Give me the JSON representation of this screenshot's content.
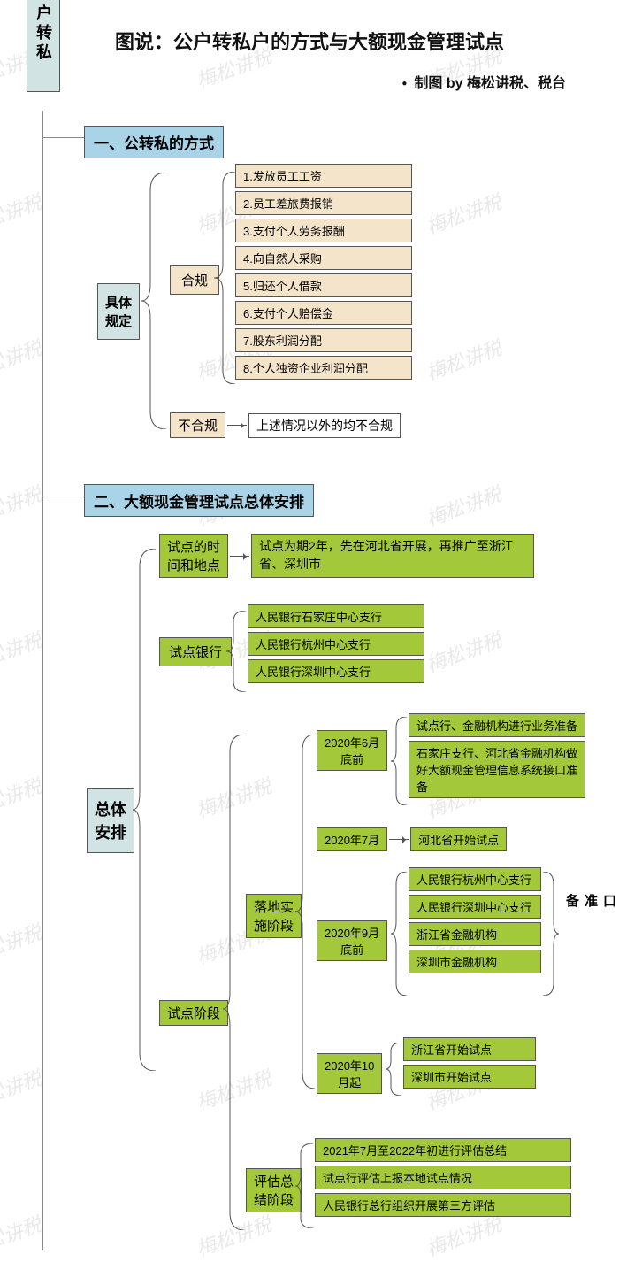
{
  "title": "图说：公户转私户的方式与大额现金管理试点",
  "byline": "制图 by 梅松讲税、税台",
  "watermark_text": "梅松讲税",
  "spine_label": "公户转私",
  "colors": {
    "blue_header": "#a9d4e8",
    "tan_box": "#f4e4ca",
    "green_box": "#a3c93a",
    "teal_box": "#d2e3e3",
    "border": "#555555",
    "text": "#111111",
    "watermark": "#dcdcdc",
    "bg": "#ffffff"
  },
  "section1": {
    "header": "一、公转私的方式",
    "root": "具体\n规定",
    "branch_a": {
      "label": "合规",
      "items": [
        "1.发放员工工资",
        "2.员工差旅费报销",
        "3.支付个人劳务报酬",
        "4.向自然人采购",
        "5.归还个人借款",
        "6.支付个人赔偿金",
        "7.股东利润分配",
        "8.个人独资企业利润分配"
      ]
    },
    "branch_b": {
      "label": "不合规",
      "result": "上述情况以外的均不合规"
    }
  },
  "section2": {
    "header": "二、大额现金管理试点总体安排",
    "root": "总体\n安排",
    "time_place": {
      "label": "试点的时\n间和地点",
      "desc": "试点为期2年，先在河北省开展，再推广至浙江省、深圳市"
    },
    "banks": {
      "label": "试点银行",
      "items": [
        "人民银行石家庄中心支行",
        "人民银行杭州中心支行",
        "人民银行深圳中心支行"
      ]
    },
    "phases": {
      "label": "试点阶段",
      "impl": {
        "label": "落地实\n施阶段",
        "t1": {
          "time": "2020年6月\n底前",
          "items": [
            "试点行、金融机构进行业务准备",
            "石家庄支行、河北省金融机构做好大额现金管理信息系统接口准备"
          ]
        },
        "t2": {
          "time": "2020年7月",
          "result": "河北省开始试点"
        },
        "t3": {
          "time": "2020年9月\n底前",
          "side_label": "接口准备",
          "items": [
            "人民银行杭州中心支行",
            "人民银行深圳中心支行",
            "浙江省金融机构",
            "深圳市金融机构"
          ]
        },
        "t4": {
          "time": "2020年10\n月起",
          "items": [
            "浙江省开始试点",
            "深圳市开始试点"
          ]
        }
      },
      "eval": {
        "label": "评估总\n结阶段",
        "items": [
          "2021年7月至2022年初进行评估总结",
          "试点行评估上报本地试点情况",
          "人民银行总行组织开展第三方评估"
        ]
      }
    }
  }
}
